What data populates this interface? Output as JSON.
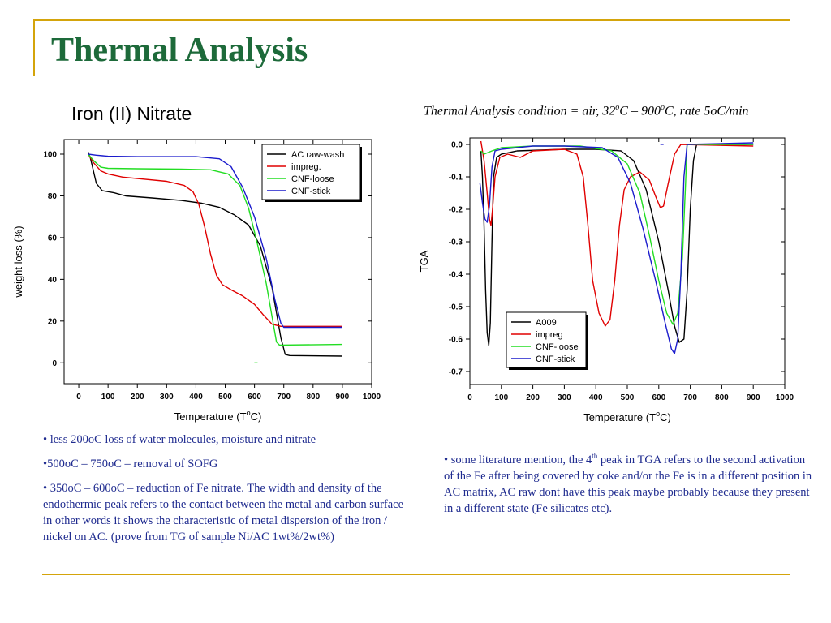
{
  "slide": {
    "title": "Thermal Analysis",
    "left_heading": "Iron (II) Nitrate",
    "right_heading": {
      "prefix": "Thermal Analysis condition = air, 32",
      "sup1": "o",
      "middle": "C – 900",
      "sup2": "o",
      "suffix": "C,  rate 5oC/min"
    }
  },
  "colors": {
    "title": "#1d6a3a",
    "rule": "#d4a40b",
    "notes_text": "#1f2b8f",
    "black": "#000000",
    "red": "#e00000",
    "green": "#22dd22",
    "blue": "#1a1acc"
  },
  "notes_left": [
    "• less 200oC loss of water molecules, moisture and nitrate",
    "•500oC – 750oC – removal of SOFG",
    "• 350oC – 600oC – reduction of Fe nitrate. The width and density of the endothermic peak refers to the contact between the metal and carbon  surface in other words it shows the characteristic of metal dispersion of the iron / nickel on AC. (prove from TG of sample Ni/AC 1wt%/2wt%)"
  ],
  "notes_right": {
    "prefix": "• some literature mention, the 4",
    "sup": "th",
    "suffix": " peak in TGA refers to the second activation of the Fe after being covered by coke and/or the Fe is in a different position in AC matrix, AC raw dont have this peak maybe probably because they present in a different state (Fe silicates etc)."
  },
  "chart_data": [
    {
      "type": "line",
      "xlabel": "Temperature (T",
      "xlabel_sup": "o",
      "xlabel_suffix": "C)",
      "ylabel": "weight loss (%)",
      "xlim": [
        -50,
        1000
      ],
      "ylim": [
        -10,
        107
      ],
      "x_ticks": [
        0,
        100,
        200,
        300,
        400,
        500,
        600,
        700,
        800,
        900,
        1000
      ],
      "y_ticks": [
        0,
        20,
        40,
        60,
        80,
        100
      ],
      "legend_position": "top-right",
      "series": [
        {
          "name": "AC raw-wash",
          "color": "#000000",
          "points": [
            [
              32,
              101
            ],
            [
              40,
              98
            ],
            [
              60,
              86
            ],
            [
              80,
              82.5
            ],
            [
              120,
              81.5
            ],
            [
              160,
              80
            ],
            [
              250,
              79
            ],
            [
              350,
              77.8
            ],
            [
              420,
              76.5
            ],
            [
              480,
              74.5
            ],
            [
              530,
              71
            ],
            [
              580,
              66
            ],
            [
              620,
              56
            ],
            [
              660,
              36
            ],
            [
              690,
              12
            ],
            [
              705,
              4
            ],
            [
              720,
              3.5
            ],
            [
              900,
              3.2
            ]
          ]
        },
        {
          "name": "impreg.",
          "color": "#e00000",
          "points": [
            [
              32,
              100
            ],
            [
              50,
              96
            ],
            [
              75,
              92
            ],
            [
              100,
              90.5
            ],
            [
              150,
              89
            ],
            [
              200,
              88.3
            ],
            [
              300,
              87
            ],
            [
              360,
              85
            ],
            [
              390,
              82
            ],
            [
              410,
              76
            ],
            [
              430,
              65
            ],
            [
              450,
              52
            ],
            [
              470,
              42
            ],
            [
              490,
              37.5
            ],
            [
              520,
              35
            ],
            [
              560,
              32
            ],
            [
              600,
              28
            ],
            [
              630,
              23
            ],
            [
              660,
              18.5
            ],
            [
              690,
              17.5
            ],
            [
              900,
              17.5
            ]
          ]
        },
        {
          "name": "CNF-loose",
          "color": "#22dd22",
          "points": [
            [
              32,
              100
            ],
            [
              50,
              97
            ],
            [
              75,
              93.8
            ],
            [
              100,
              93.2
            ],
            [
              200,
              93
            ],
            [
              350,
              92.8
            ],
            [
              450,
              92.5
            ],
            [
              510,
              90.5
            ],
            [
              550,
              85
            ],
            [
              580,
              74
            ],
            [
              610,
              57
            ],
            [
              640,
              38
            ],
            [
              660,
              22
            ],
            [
              675,
              10
            ],
            [
              685,
              8.5
            ],
            [
              900,
              8.8
            ]
          ]
        },
        {
          "name": "CNF-stick",
          "color": "#1a1acc",
          "points": [
            [
              32,
              100
            ],
            [
              60,
              99.5
            ],
            [
              100,
              99
            ],
            [
              200,
              98.8
            ],
            [
              400,
              98.8
            ],
            [
              480,
              97.8
            ],
            [
              520,
              94
            ],
            [
              560,
              84
            ],
            [
              600,
              70
            ],
            [
              640,
              50
            ],
            [
              670,
              30
            ],
            [
              690,
              19
            ],
            [
              700,
              17
            ],
            [
              900,
              17
            ]
          ]
        }
      ],
      "marks": [
        {
          "x": 605,
          "y": 0,
          "color": "#22dd22"
        }
      ]
    },
    {
      "type": "line",
      "xlabel": "Temperature (T",
      "xlabel_sup": "o",
      "xlabel_suffix": "C)",
      "ylabel": "TGA",
      "xlim": [
        0,
        1000
      ],
      "ylim": [
        -0.74,
        0.02
      ],
      "x_ticks": [
        0,
        100,
        200,
        300,
        400,
        500,
        600,
        700,
        800,
        900,
        1000
      ],
      "y_ticks": [
        0.0,
        -0.1,
        -0.2,
        -0.3,
        -0.4,
        -0.5,
        -0.6,
        -0.7
      ],
      "y_tick_labels": [
        "0.0",
        "-0.1",
        "-0.2",
        "-0.3",
        "-0.4",
        "-0.5",
        "-0.6",
        "-0.7"
      ],
      "legend_position": "bottom-left",
      "series": [
        {
          "name": "A009",
          "color": "#000000",
          "points": [
            [
              35,
              -0.02
            ],
            [
              40,
              -0.1
            ],
            [
              45,
              -0.25
            ],
            [
              50,
              -0.45
            ],
            [
              55,
              -0.58
            ],
            [
              60,
              -0.62
            ],
            [
              65,
              -0.55
            ],
            [
              70,
              -0.3
            ],
            [
              75,
              -0.1
            ],
            [
              85,
              -0.04
            ],
            [
              100,
              -0.03
            ],
            [
              150,
              -0.02
            ],
            [
              300,
              -0.015
            ],
            [
              400,
              -0.015
            ],
            [
              480,
              -0.02
            ],
            [
              520,
              -0.05
            ],
            [
              560,
              -0.14
            ],
            [
              600,
              -0.3
            ],
            [
              630,
              -0.45
            ],
            [
              650,
              -0.56
            ],
            [
              665,
              -0.61
            ],
            [
              680,
              -0.6
            ],
            [
              690,
              -0.45
            ],
            [
              700,
              -0.2
            ],
            [
              710,
              -0.05
            ],
            [
              720,
              0.0
            ],
            [
              900,
              0.0
            ]
          ]
        },
        {
          "name": "impreg",
          "color": "#e00000",
          "points": [
            [
              35,
              0.01
            ],
            [
              45,
              -0.05
            ],
            [
              55,
              -0.15
            ],
            [
              62,
              -0.23
            ],
            [
              67,
              -0.25
            ],
            [
              72,
              -0.2
            ],
            [
              80,
              -0.1
            ],
            [
              95,
              -0.04
            ],
            [
              120,
              -0.03
            ],
            [
              160,
              -0.04
            ],
            [
              200,
              -0.02
            ],
            [
              300,
              -0.015
            ],
            [
              340,
              -0.03
            ],
            [
              360,
              -0.1
            ],
            [
              375,
              -0.25
            ],
            [
              390,
              -0.42
            ],
            [
              410,
              -0.52
            ],
            [
              430,
              -0.56
            ],
            [
              445,
              -0.54
            ],
            [
              460,
              -0.42
            ],
            [
              475,
              -0.25
            ],
            [
              490,
              -0.14
            ],
            [
              510,
              -0.1
            ],
            [
              540,
              -0.085
            ],
            [
              570,
              -0.11
            ],
            [
              590,
              -0.16
            ],
            [
              605,
              -0.195
            ],
            [
              615,
              -0.19
            ],
            [
              630,
              -0.12
            ],
            [
              650,
              -0.03
            ],
            [
              670,
              0.0
            ],
            [
              900,
              -0.005
            ]
          ]
        },
        {
          "name": "CNF-loose",
          "color": "#22dd22",
          "points": [
            [
              35,
              -0.02
            ],
            [
              45,
              -0.03
            ],
            [
              70,
              -0.02
            ],
            [
              100,
              -0.01
            ],
            [
              200,
              -0.005
            ],
            [
              350,
              -0.005
            ],
            [
              450,
              -0.02
            ],
            [
              500,
              -0.06
            ],
            [
              540,
              -0.15
            ],
            [
              570,
              -0.28
            ],
            [
              600,
              -0.42
            ],
            [
              625,
              -0.52
            ],
            [
              645,
              -0.555
            ],
            [
              660,
              -0.52
            ],
            [
              675,
              -0.35
            ],
            [
              685,
              -0.12
            ],
            [
              690,
              0.0
            ],
            [
              900,
              0.0
            ]
          ]
        },
        {
          "name": "CNF-stick",
          "color": "#1a1acc",
          "points": [
            [
              32,
              -0.12
            ],
            [
              40,
              -0.18
            ],
            [
              48,
              -0.23
            ],
            [
              55,
              -0.24
            ],
            [
              62,
              -0.19
            ],
            [
              70,
              -0.07
            ],
            [
              80,
              -0.02
            ],
            [
              100,
              -0.015
            ],
            [
              200,
              -0.005
            ],
            [
              300,
              -0.005
            ],
            [
              420,
              -0.01
            ],
            [
              470,
              -0.04
            ],
            [
              510,
              -0.12
            ],
            [
              550,
              -0.26
            ],
            [
              590,
              -0.42
            ],
            [
              620,
              -0.55
            ],
            [
              640,
              -0.63
            ],
            [
              650,
              -0.645
            ],
            [
              660,
              -0.6
            ],
            [
              670,
              -0.4
            ],
            [
              680,
              -0.1
            ],
            [
              690,
              0.0
            ],
            [
              900,
              0.005
            ]
          ]
        }
      ],
      "marks": [
        {
          "x": 610,
          "y": 0.0,
          "color": "#1a1acc"
        }
      ]
    }
  ]
}
